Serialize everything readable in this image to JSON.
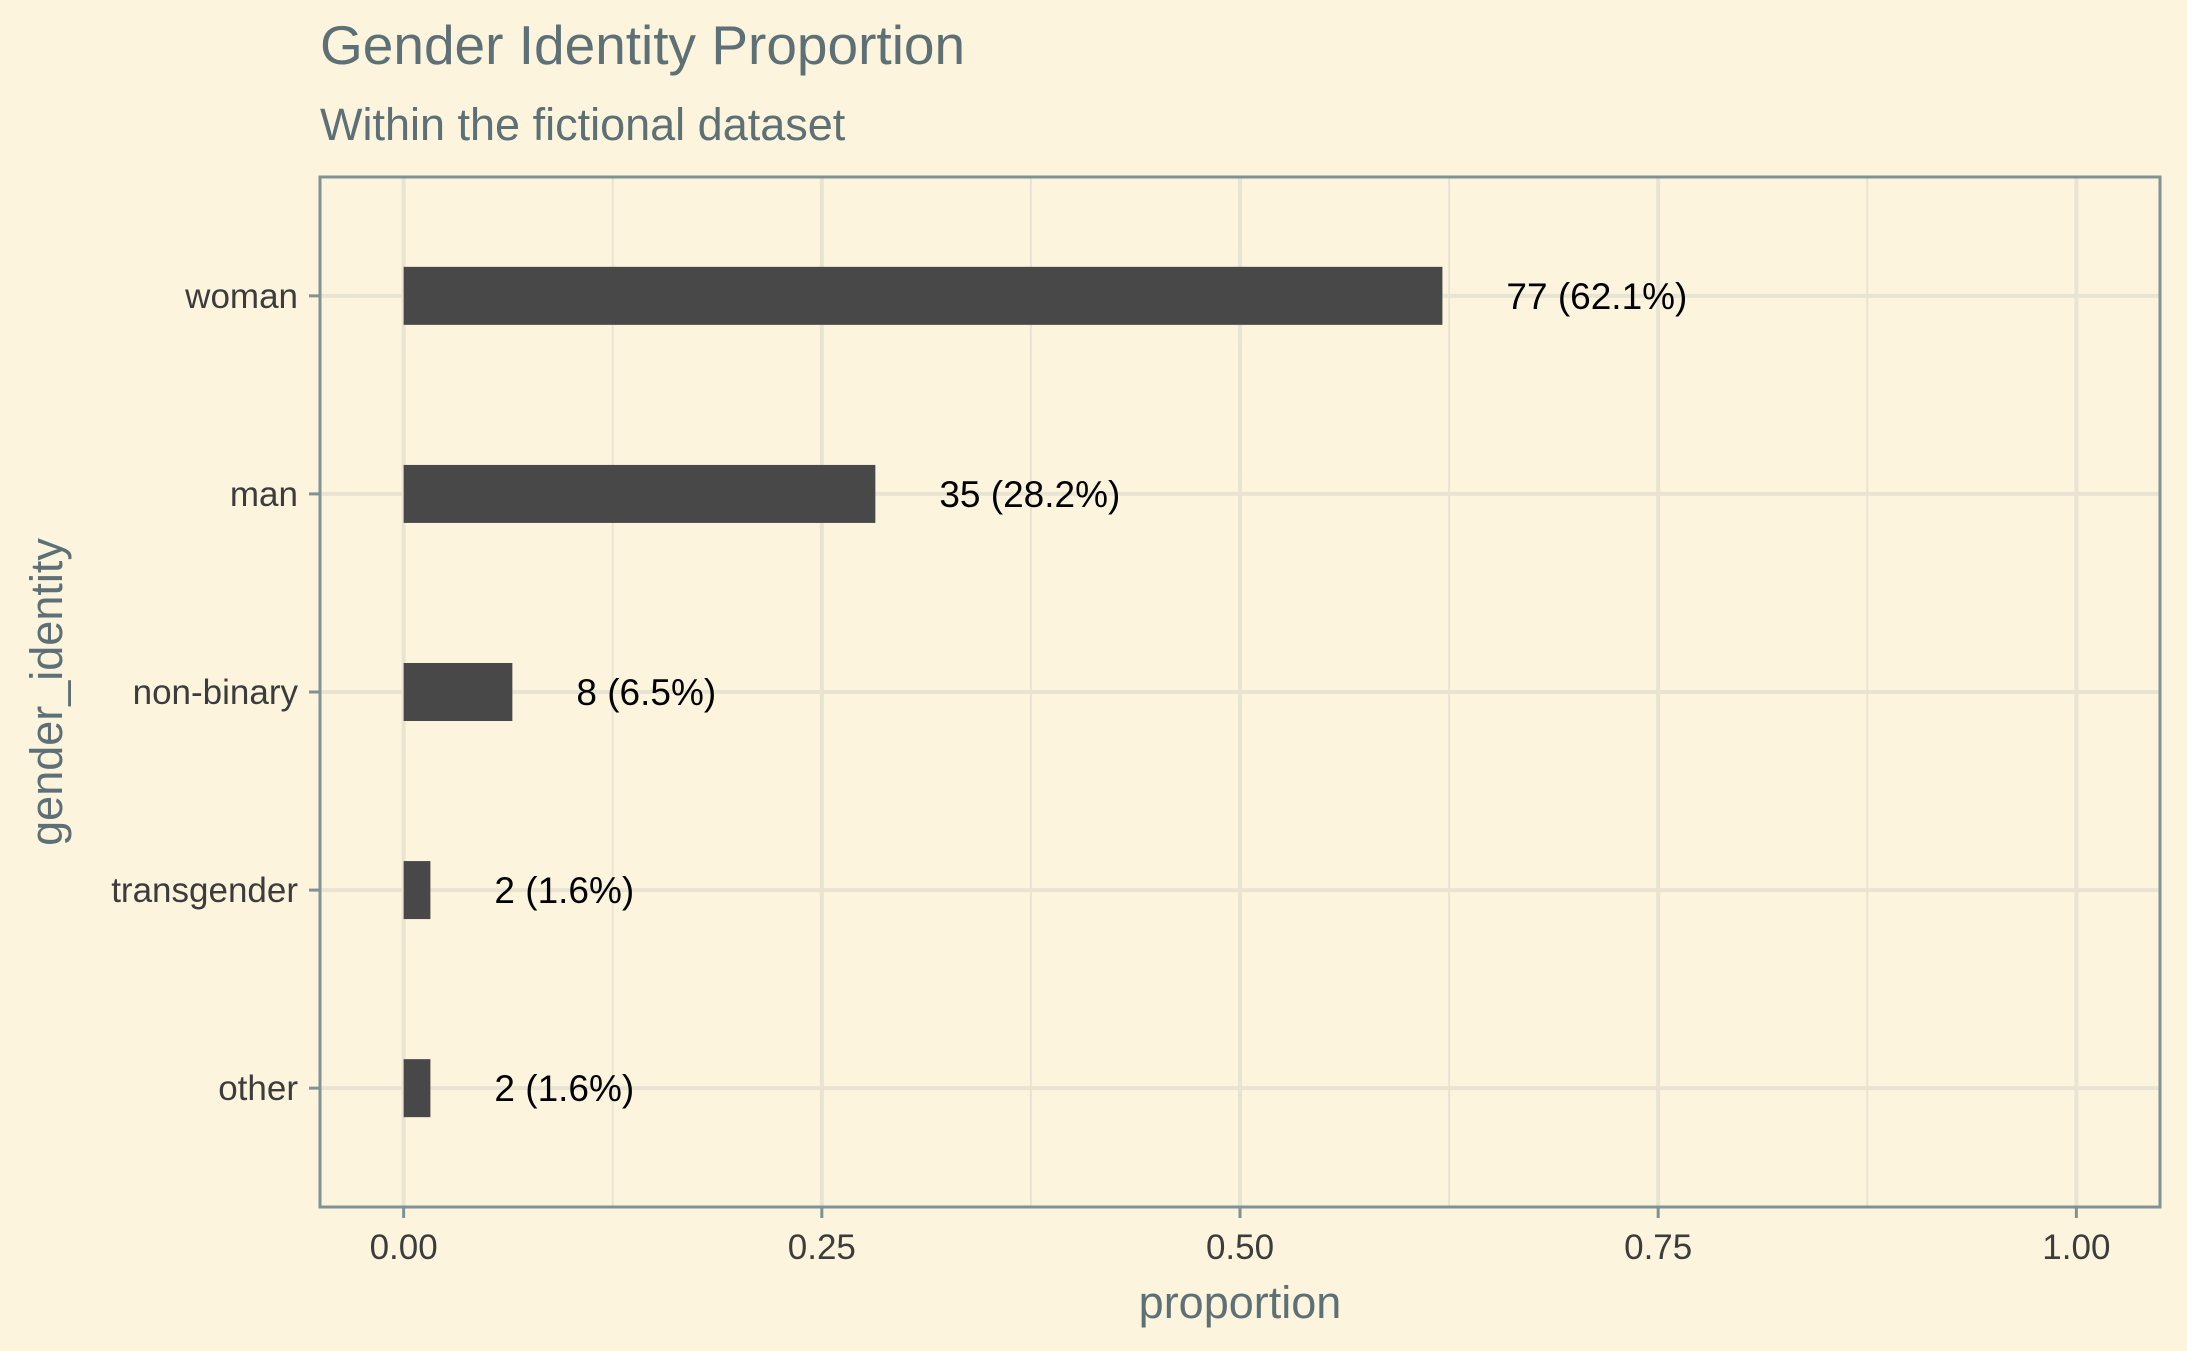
{
  "chart_data": {
    "type": "bar",
    "orientation": "horizontal",
    "title": "Gender Identity Proportion",
    "subtitle": "Within the fictional dataset",
    "xlabel": "proportion",
    "ylabel": "gender_identity",
    "xlim": [
      -0.05,
      1.05
    ],
    "x_ticks": [
      0.0,
      0.25,
      0.5,
      0.75,
      1.0
    ],
    "x_tick_labels": [
      "0.00",
      "0.25",
      "0.50",
      "0.75",
      "1.00"
    ],
    "categories": [
      "woman",
      "man",
      "non-binary",
      "transgender",
      "other"
    ],
    "counts": [
      77,
      35,
      8,
      2,
      2
    ],
    "values": [
      0.621,
      0.282,
      0.065,
      0.016,
      0.016
    ],
    "data_labels": [
      "77 (62.1%)",
      "35 (28.2%)",
      "8 (6.5%)",
      "2 (1.6%)",
      "2 (1.6%)"
    ],
    "grid": true,
    "legend": "none"
  },
  "colors": {
    "background": "#fdf4de",
    "bar": "#484848",
    "grid": "#e9e4d2",
    "panel_border": "#7f9294",
    "title": "#5c7075",
    "tick_text": "#3c3c3c",
    "data_label_text": "#000000"
  }
}
